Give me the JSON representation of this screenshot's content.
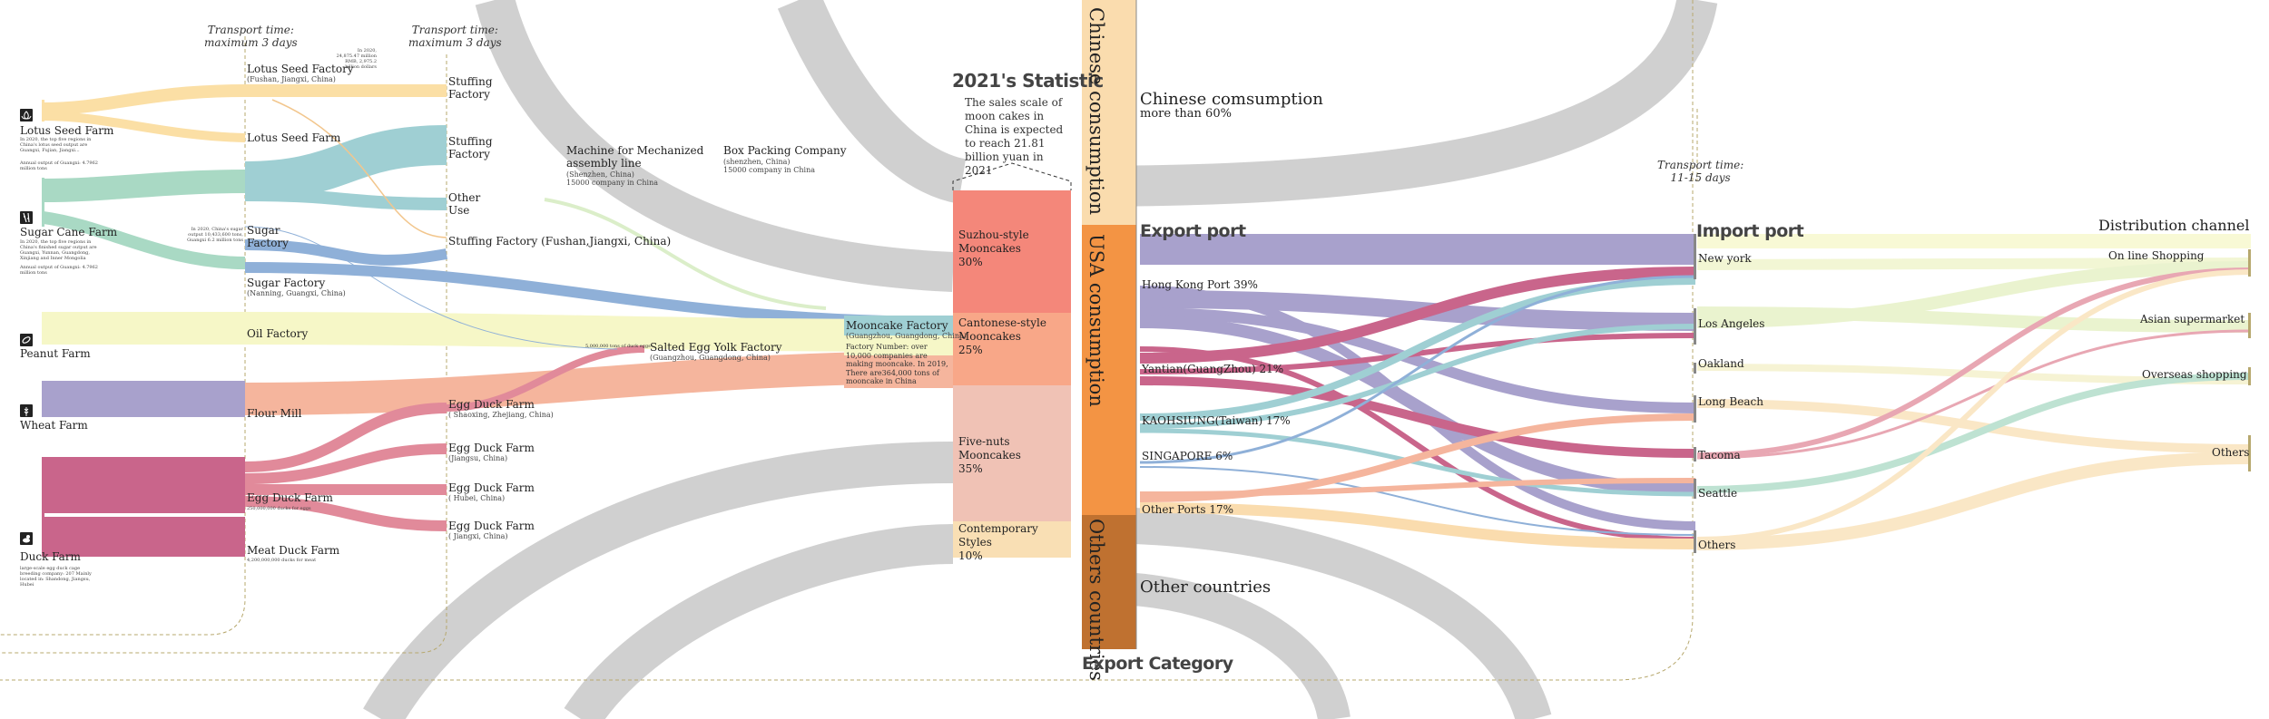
{
  "colors": {
    "lotus": "#fbdfa5",
    "sugar": "#a9d9c4",
    "sugar_factory": "#9fcfd3",
    "sugar_blue": "#8fb0d8",
    "peanut": "#f6f7c7",
    "wheat": "#a8a1cc",
    "duck": "#c9658b",
    "egg": "#e18a9a",
    "flour": "#f5b59d",
    "grey": "#d0d0d0",
    "suzhou": "#f4877a",
    "cantonese": "#f8a788",
    "fivenuts": "#f0c2b5",
    "contemporary": "#f9dfb4",
    "chinese_bar": "#fadcae",
    "usa_bar": "#f39444",
    "others_bar": "#bf7130",
    "dash": "#b7a86e"
  },
  "icons": [
    "lotus-icon",
    "sugarcane-icon",
    "peanut-icon",
    "wheat-icon",
    "duck-icon"
  ],
  "transport": {
    "t1": "Transport time:",
    "t1b": "maximum 3 days",
    "t2": "Transport time:",
    "t2b": "maximum 3 days",
    "t3": "Transport time:",
    "t3b": "11-15 days"
  },
  "farms": {
    "lotus": {
      "name": "Lotus Seed Farm",
      "note": "In 2020, the top five regions in China's lotus seed output are Guangxi, Fujian, Jiangxi...",
      "note2": "Annual output of Guangxi: 4.7962 million tons"
    },
    "sugar": {
      "name": "Sugar Cane Farm",
      "note": "In 2020, the top five regions in China's finished sugar output are Guangxi, Yunnan, Guangdong, Xinjiang and Inner Mongolia",
      "note2": "Annual output of Guangxi: 4.7962 million tons"
    },
    "peanut": {
      "name": "Peanut Farm"
    },
    "wheat": {
      "name": "Wheat Farm"
    },
    "duck": {
      "name": "Duck Farm",
      "note": "large-scale egg duck cage breeding company: 207 Mainly located in: Shandong, Jiangsu, Hubei"
    }
  },
  "stage2": {
    "lotus_factory": {
      "name": "Lotus Seed Factory",
      "loc": "(Fushan, Jiangxi, China)",
      "note": "In 2020, 24,875.47 million RMB, 2,975.2 billion dollars"
    },
    "lotus_farm": "Lotus Seed Farm",
    "sugar_factory_a": "Sugar",
    "sugar_factory_b": "Factory",
    "sugar_note": "In 2020, China's sugar output 10,433,600 tons, Guangxi 6.2 million tons",
    "sugar_factory2": {
      "name": "Sugar Factory",
      "loc": "(Nanning, Guangxi, China)"
    },
    "oil": "Oil Factory",
    "flour": "Flour Mill",
    "egg_duck": {
      "name": "Egg Duck Farm",
      "note": "250,000,000 ducks for eggs"
    },
    "meat_duck": {
      "name": "Meat Duck Farm",
      "note": "4,200,000,000 ducks for meat"
    }
  },
  "stage3": {
    "stuffing1a": "Stuffing",
    "stuffing1b": "Factory",
    "stuffing2a": "Stuffing",
    "stuffing2b": "Factory",
    "other_use_a": "Other",
    "other_use_b": "Use",
    "stuffing3": "Stuffing Factory (Fushan,Jiangxi, China)",
    "egg1": {
      "name": "Egg Duck Farm",
      "loc": "( Shaoxing, Zhejiang, China)"
    },
    "egg2": {
      "name": "Egg Duck Farm",
      "loc": "(Jiangsu, China)"
    },
    "egg3": {
      "name": "Egg Duck Farm",
      "loc": "( Hubei, China)"
    },
    "egg4": {
      "name": "Egg Duck Farm",
      "loc": "( Jiangxi, China)"
    }
  },
  "middle": {
    "machine": {
      "name": "Machine for Mechanized",
      "name2": "assembly line",
      "loc": "(Shenzhen, China)",
      "note": "15000 company in China"
    },
    "box": {
      "name": "Box Packing Company",
      "loc": "(shenzhen, China)",
      "note": "15000 company in China"
    },
    "salted": {
      "name": "Salted Egg Yolk Factory",
      "loc": "(Guangzhou, Guangdong, China)",
      "note": "5,000,000 tons of duck eggs"
    },
    "mooncake": {
      "name": "Mooncake Factory",
      "loc": "(Guangzhou, Guangdong, China)",
      "desc": "Factory Number: over 10,000 companies are making mooncake. In 2019, There are364,000 tons of mooncake in China"
    }
  },
  "statistic": {
    "title": "2021's Statistic",
    "desc": "The sales scale of moon cakes in China is expected to reach 21.81 billion yuan in 2021",
    "categories": [
      {
        "name": "Suzhou-style Mooncakes",
        "pct": "30%"
      },
      {
        "name": "Cantonese-style Mooncakes",
        "pct": "25%"
      },
      {
        "name": "Five-nuts Mooncakes",
        "pct": "35%"
      },
      {
        "name": "Contemporary Styles",
        "pct": "10%"
      }
    ]
  },
  "consumption": {
    "chinese_v": "Chinese consumption",
    "usa_v": "USA consumption",
    "others_v": "Others countries",
    "chinese": "Chinese comsumption",
    "chinese_sub": "more than 60%",
    "other_countries": "Other countries",
    "export_category": "Export Category"
  },
  "export_port": {
    "title": "Export port",
    "ports": [
      "Hong Kong Port 39%",
      "Yantian(GuangZhou) 21%",
      "KAOHSIUNG(Taiwan) 17%",
      "SINGAPORE 6%",
      "Other Ports 17%"
    ]
  },
  "import_port": {
    "title": "Import port",
    "ports": [
      "New york",
      "Los Angeles",
      "Oakland",
      "Long Beach",
      "Tacoma",
      "Seattle",
      "Others"
    ]
  },
  "distribution": {
    "title": "Distribution channel",
    "channels": [
      "On line Shopping",
      "Asian supermarket",
      "Overseas shopping",
      "Others"
    ]
  }
}
